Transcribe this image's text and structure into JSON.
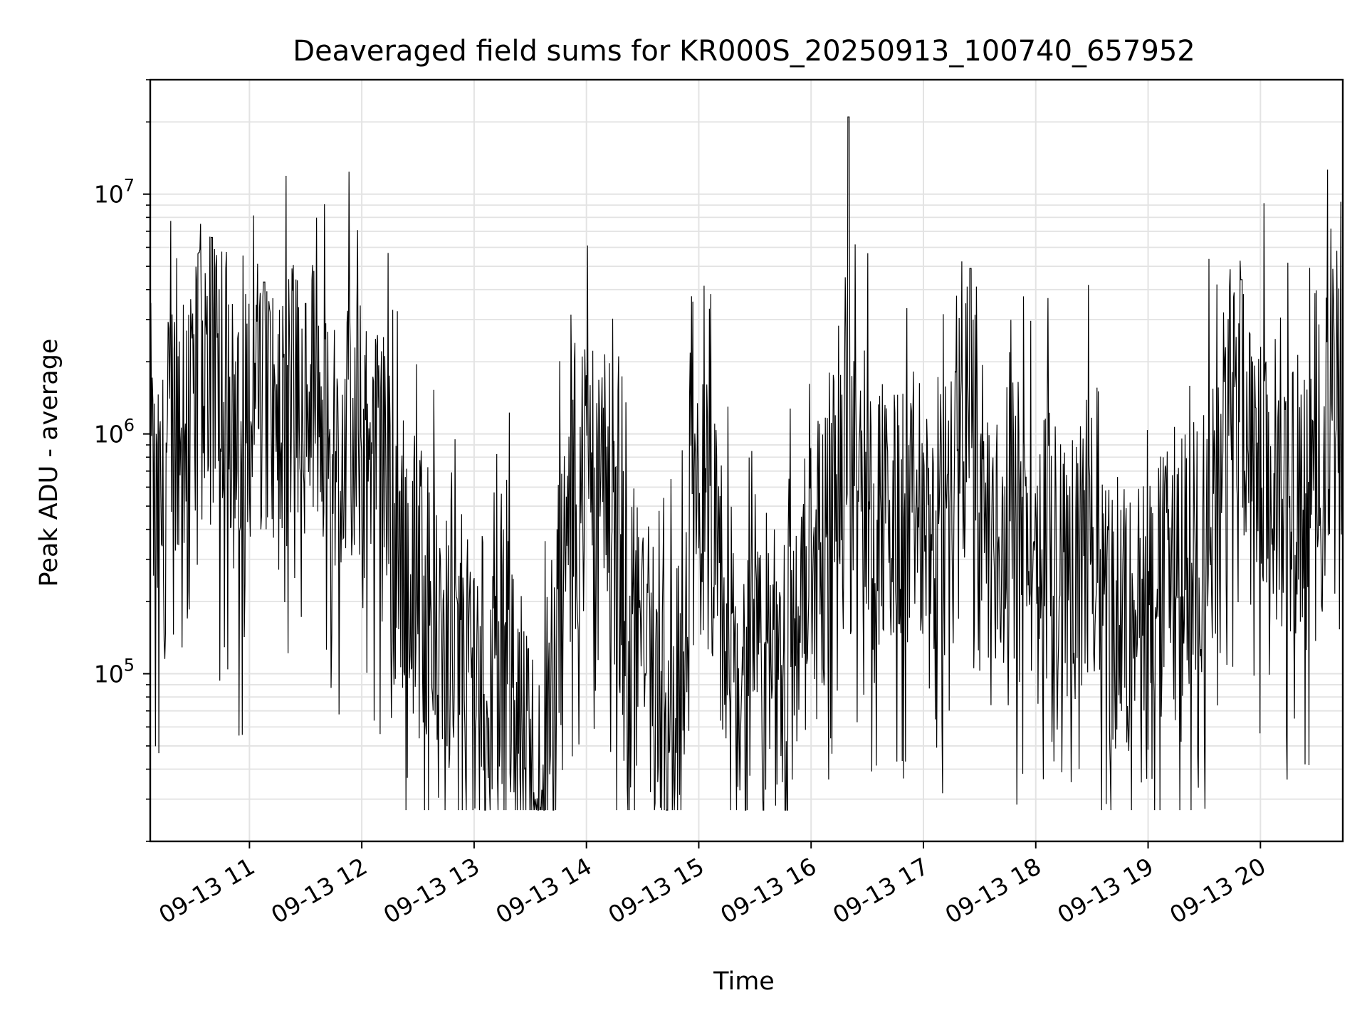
{
  "chart_data": {
    "type": "line",
    "title": "Deaveraged field sums for KR000S_20250913_100740_657952",
    "xlabel": "Time",
    "ylabel": "Peak ADU - average",
    "yscale": "log",
    "ylim": [
      20000,
      30000000
    ],
    "xlim": [
      "2025-09-13 10:07",
      "2025-09-13 20:44"
    ],
    "grid": true,
    "line_color": "#000000",
    "x_ticks": [
      {
        "x": "2025-09-13 11:00",
        "label": "09-13 11"
      },
      {
        "x": "2025-09-13 12:00",
        "label": "09-13 12"
      },
      {
        "x": "2025-09-13 13:00",
        "label": "09-13 13"
      },
      {
        "x": "2025-09-13 14:00",
        "label": "09-13 14"
      },
      {
        "x": "2025-09-13 15:00",
        "label": "09-13 15"
      },
      {
        "x": "2025-09-13 16:00",
        "label": "09-13 16"
      },
      {
        "x": "2025-09-13 17:00",
        "label": "09-13 17"
      },
      {
        "x": "2025-09-13 18:00",
        "label": "09-13 18"
      },
      {
        "x": "2025-09-13 19:00",
        "label": "09-13 19"
      },
      {
        "x": "2025-09-13 20:00",
        "label": "09-13 20"
      }
    ],
    "y_ticks": [
      {
        "value": 100000,
        "base": "10",
        "exp": "5"
      },
      {
        "value": 1000000,
        "base": "10",
        "exp": "6"
      },
      {
        "value": 10000000,
        "base": "10",
        "exp": "7"
      }
    ],
    "series": [
      {
        "points": [
          [
            "2025-09-13 10:07",
            1000000
          ],
          [
            "2025-09-13 10:10",
            350000
          ],
          [
            "2025-09-13 10:14",
            500000
          ],
          [
            "2025-09-13 10:18",
            1100000
          ],
          [
            "2025-09-13 10:24",
            1600000
          ],
          [
            "2025-09-13 10:30",
            2000000
          ],
          [
            "2025-09-13 10:33",
            5700000
          ],
          [
            "2025-09-13 10:36",
            2200000
          ],
          [
            "2025-09-13 10:40",
            6600000
          ],
          [
            "2025-09-13 10:45",
            1800000
          ],
          [
            "2025-09-13 10:50",
            1300000
          ],
          [
            "2025-09-13 10:55",
            700000
          ],
          [
            "2025-09-13 11:00",
            1400000
          ],
          [
            "2025-09-13 11:05",
            2500000
          ],
          [
            "2025-09-13 11:08",
            4300000
          ],
          [
            "2025-09-13 11:12",
            900000
          ],
          [
            "2025-09-13 11:20",
            1300000
          ],
          [
            "2025-09-13 11:25",
            1800000
          ],
          [
            "2025-09-13 11:30",
            3500000
          ],
          [
            "2025-09-13 11:35",
            1500000
          ],
          [
            "2025-09-13 11:40",
            2200000
          ],
          [
            "2025-09-13 11:45",
            1000000
          ],
          [
            "2025-09-13 11:52",
            1100000
          ],
          [
            "2025-09-13 12:00",
            900000
          ],
          [
            "2025-09-13 12:10",
            700000
          ],
          [
            "2025-09-13 12:20",
            350000
          ],
          [
            "2025-09-13 12:30",
            250000
          ],
          [
            "2025-09-13 12:40",
            180000
          ],
          [
            "2025-09-13 12:50",
            120000
          ],
          [
            "2025-09-13 13:00",
            110000
          ],
          [
            "2025-09-13 13:10",
            90000
          ],
          [
            "2025-09-13 13:20",
            110000
          ],
          [
            "2025-09-13 13:25",
            45000
          ],
          [
            "2025-09-13 13:30",
            35000
          ],
          [
            "2025-09-13 13:35",
            30000
          ],
          [
            "2025-09-13 13:40",
            38000
          ],
          [
            "2025-09-13 13:45",
            200000
          ],
          [
            "2025-09-13 13:50",
            350000
          ],
          [
            "2025-09-13 13:55",
            600000
          ],
          [
            "2025-09-13 14:00",
            800000
          ],
          [
            "2025-09-13 14:10",
            600000
          ],
          [
            "2025-09-13 14:20",
            250000
          ],
          [
            "2025-09-13 14:30",
            120000
          ],
          [
            "2025-09-13 14:40",
            80000
          ],
          [
            "2025-09-13 14:50",
            70000
          ],
          [
            "2025-09-13 14:55",
            400000
          ],
          [
            "2025-09-13 15:05",
            500000
          ],
          [
            "2025-09-13 15:15",
            120000
          ],
          [
            "2025-09-13 15:25",
            70000
          ],
          [
            "2025-09-13 15:35",
            90000
          ],
          [
            "2025-09-13 15:45",
            120000
          ],
          [
            "2025-09-13 15:55",
            200000
          ],
          [
            "2025-09-13 16:05",
            350000
          ],
          [
            "2025-09-13 16:15",
            600000
          ],
          [
            "2025-09-13 16:20",
            21000000
          ],
          [
            "2025-09-13 16:25",
            700000
          ],
          [
            "2025-09-13 16:35",
            550000
          ],
          [
            "2025-09-13 16:45",
            400000
          ],
          [
            "2025-09-13 16:55",
            500000
          ],
          [
            "2025-09-13 17:05",
            450000
          ],
          [
            "2025-09-13 17:15",
            400000
          ],
          [
            "2025-09-13 17:25",
            4900000
          ],
          [
            "2025-09-13 17:30",
            600000
          ],
          [
            "2025-09-13 17:40",
            350000
          ],
          [
            "2025-09-13 17:50",
            450000
          ],
          [
            "2025-09-13 18:00",
            400000
          ],
          [
            "2025-09-13 18:10",
            350000
          ],
          [
            "2025-09-13 18:20",
            300000
          ],
          [
            "2025-09-13 18:30",
            400000
          ],
          [
            "2025-09-13 18:40",
            200000
          ],
          [
            "2025-09-13 18:50",
            150000
          ],
          [
            "2025-09-13 19:00",
            180000
          ],
          [
            "2025-09-13 19:10",
            220000
          ],
          [
            "2025-09-13 19:20",
            300000
          ],
          [
            "2025-09-13 19:30",
            400000
          ],
          [
            "2025-09-13 19:40",
            700000
          ],
          [
            "2025-09-13 19:50",
            4400000
          ],
          [
            "2025-09-13 20:00",
            800000
          ],
          [
            "2025-09-13 20:10",
            600000
          ],
          [
            "2025-09-13 20:20",
            500000
          ],
          [
            "2025-09-13 20:25",
            450000
          ],
          [
            "2025-09-13 20:30",
            1200000
          ],
          [
            "2025-09-13 20:35",
            1400000
          ],
          [
            "2025-09-13 20:40",
            1300000
          ],
          [
            "2025-09-13 20:44",
            1100000
          ]
        ]
      }
    ]
  }
}
